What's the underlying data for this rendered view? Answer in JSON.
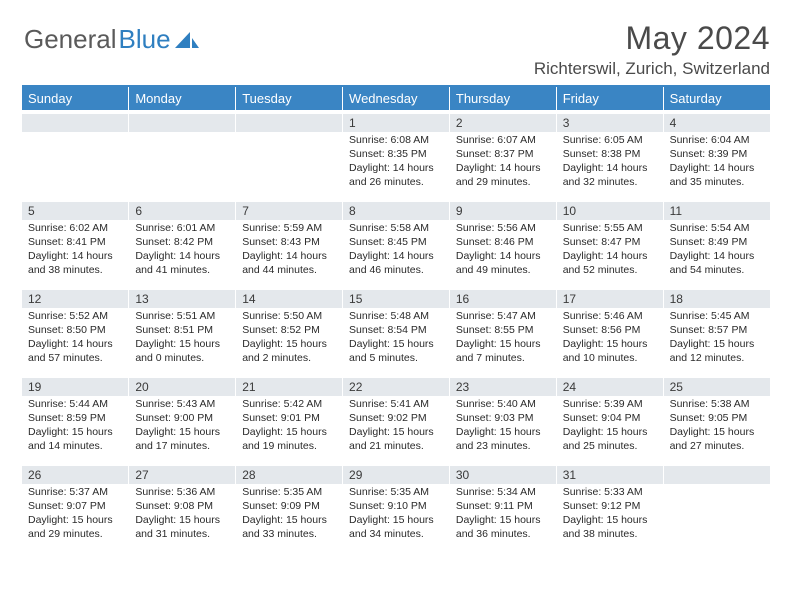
{
  "brand": {
    "part1": "General",
    "part2": "Blue"
  },
  "title": "May 2024",
  "location": "Richterswil, Zurich, Switzerland",
  "colors": {
    "header_bar": "#3a85c4",
    "dayheader_bg": "#e4e8ec",
    "text": "#2a2a2a",
    "title_text": "#4a4a4a"
  },
  "days": [
    "Sunday",
    "Monday",
    "Tuesday",
    "Wednesday",
    "Thursday",
    "Friday",
    "Saturday"
  ],
  "weeks": [
    [
      null,
      null,
      null,
      {
        "n": "1",
        "sr": "6:08 AM",
        "ss": "8:35 PM",
        "dl": "14 hours and 26 minutes."
      },
      {
        "n": "2",
        "sr": "6:07 AM",
        "ss": "8:37 PM",
        "dl": "14 hours and 29 minutes."
      },
      {
        "n": "3",
        "sr": "6:05 AM",
        "ss": "8:38 PM",
        "dl": "14 hours and 32 minutes."
      },
      {
        "n": "4",
        "sr": "6:04 AM",
        "ss": "8:39 PM",
        "dl": "14 hours and 35 minutes."
      }
    ],
    [
      {
        "n": "5",
        "sr": "6:02 AM",
        "ss": "8:41 PM",
        "dl": "14 hours and 38 minutes."
      },
      {
        "n": "6",
        "sr": "6:01 AM",
        "ss": "8:42 PM",
        "dl": "14 hours and 41 minutes."
      },
      {
        "n": "7",
        "sr": "5:59 AM",
        "ss": "8:43 PM",
        "dl": "14 hours and 44 minutes."
      },
      {
        "n": "8",
        "sr": "5:58 AM",
        "ss": "8:45 PM",
        "dl": "14 hours and 46 minutes."
      },
      {
        "n": "9",
        "sr": "5:56 AM",
        "ss": "8:46 PM",
        "dl": "14 hours and 49 minutes."
      },
      {
        "n": "10",
        "sr": "5:55 AM",
        "ss": "8:47 PM",
        "dl": "14 hours and 52 minutes."
      },
      {
        "n": "11",
        "sr": "5:54 AM",
        "ss": "8:49 PM",
        "dl": "14 hours and 54 minutes."
      }
    ],
    [
      {
        "n": "12",
        "sr": "5:52 AM",
        "ss": "8:50 PM",
        "dl": "14 hours and 57 minutes."
      },
      {
        "n": "13",
        "sr": "5:51 AM",
        "ss": "8:51 PM",
        "dl": "15 hours and 0 minutes."
      },
      {
        "n": "14",
        "sr": "5:50 AM",
        "ss": "8:52 PM",
        "dl": "15 hours and 2 minutes."
      },
      {
        "n": "15",
        "sr": "5:48 AM",
        "ss": "8:54 PM",
        "dl": "15 hours and 5 minutes."
      },
      {
        "n": "16",
        "sr": "5:47 AM",
        "ss": "8:55 PM",
        "dl": "15 hours and 7 minutes."
      },
      {
        "n": "17",
        "sr": "5:46 AM",
        "ss": "8:56 PM",
        "dl": "15 hours and 10 minutes."
      },
      {
        "n": "18",
        "sr": "5:45 AM",
        "ss": "8:57 PM",
        "dl": "15 hours and 12 minutes."
      }
    ],
    [
      {
        "n": "19",
        "sr": "5:44 AM",
        "ss": "8:59 PM",
        "dl": "15 hours and 14 minutes."
      },
      {
        "n": "20",
        "sr": "5:43 AM",
        "ss": "9:00 PM",
        "dl": "15 hours and 17 minutes."
      },
      {
        "n": "21",
        "sr": "5:42 AM",
        "ss": "9:01 PM",
        "dl": "15 hours and 19 minutes."
      },
      {
        "n": "22",
        "sr": "5:41 AM",
        "ss": "9:02 PM",
        "dl": "15 hours and 21 minutes."
      },
      {
        "n": "23",
        "sr": "5:40 AM",
        "ss": "9:03 PM",
        "dl": "15 hours and 23 minutes."
      },
      {
        "n": "24",
        "sr": "5:39 AM",
        "ss": "9:04 PM",
        "dl": "15 hours and 25 minutes."
      },
      {
        "n": "25",
        "sr": "5:38 AM",
        "ss": "9:05 PM",
        "dl": "15 hours and 27 minutes."
      }
    ],
    [
      {
        "n": "26",
        "sr": "5:37 AM",
        "ss": "9:07 PM",
        "dl": "15 hours and 29 minutes."
      },
      {
        "n": "27",
        "sr": "5:36 AM",
        "ss": "9:08 PM",
        "dl": "15 hours and 31 minutes."
      },
      {
        "n": "28",
        "sr": "5:35 AM",
        "ss": "9:09 PM",
        "dl": "15 hours and 33 minutes."
      },
      {
        "n": "29",
        "sr": "5:35 AM",
        "ss": "9:10 PM",
        "dl": "15 hours and 34 minutes."
      },
      {
        "n": "30",
        "sr": "5:34 AM",
        "ss": "9:11 PM",
        "dl": "15 hours and 36 minutes."
      },
      {
        "n": "31",
        "sr": "5:33 AM",
        "ss": "9:12 PM",
        "dl": "15 hours and 38 minutes."
      },
      null
    ]
  ],
  "labels": {
    "sunrise": "Sunrise:",
    "sunset": "Sunset:",
    "daylight": "Daylight:"
  }
}
